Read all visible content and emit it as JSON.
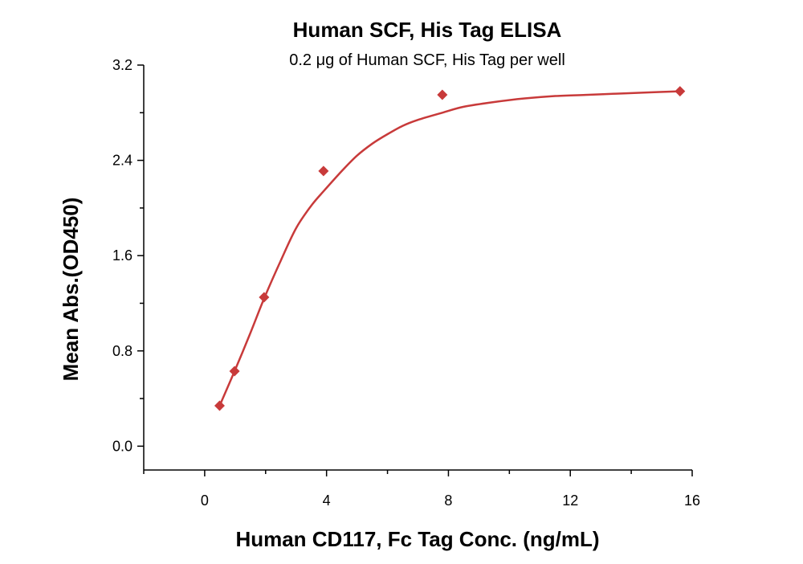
{
  "chart_data": {
    "type": "scatter",
    "title": "Human SCF, His Tag ELISA",
    "subtitle": "0.2 μg of Human SCF, His Tag per well",
    "xlabel": "Human CD117, Fc Tag Conc. (ng/mL)",
    "ylabel": "Mean Abs.(OD450)",
    "xlim": [
      -2,
      16
    ],
    "ylim": [
      -0.2,
      3.2
    ],
    "x_ticks": [
      0,
      4,
      8,
      12,
      16
    ],
    "x_tick_labels": [
      "0",
      "4",
      "8",
      "12",
      "16"
    ],
    "x_minor_ticks": [
      -2,
      2,
      6,
      10,
      14
    ],
    "y_ticks": [
      0.0,
      0.8,
      1.6,
      2.4,
      3.2
    ],
    "y_tick_labels": [
      "0.0",
      "0.8",
      "1.6",
      "2.4",
      "3.2"
    ],
    "y_minor_ticks": [
      0.4,
      1.2,
      2.0,
      2.8
    ],
    "grid": false,
    "legend": "none",
    "marker": "diamond",
    "color": "#c83a3a",
    "series": [
      {
        "x": [
          0.49,
          0.98,
          1.95,
          3.9,
          7.8,
          15.6
        ],
        "y": [
          0.34,
          0.63,
          1.25,
          2.31,
          2.95,
          2.98
        ]
      }
    ],
    "fit_curve": {
      "x": [
        0.49,
        0.98,
        1.5,
        1.95,
        2.5,
        3.0,
        3.5,
        3.9,
        4.5,
        5.0,
        5.5,
        6.0,
        6.5,
        7.0,
        7.8,
        8.5,
        9.5,
        10.5,
        11.5,
        12.5,
        13.5,
        14.5,
        15.6
      ],
      "y": [
        0.34,
        0.63,
        0.95,
        1.24,
        1.56,
        1.83,
        2.02,
        2.14,
        2.31,
        2.44,
        2.54,
        2.62,
        2.69,
        2.74,
        2.8,
        2.85,
        2.89,
        2.92,
        2.94,
        2.95,
        2.96,
        2.97,
        2.98
      ]
    }
  }
}
